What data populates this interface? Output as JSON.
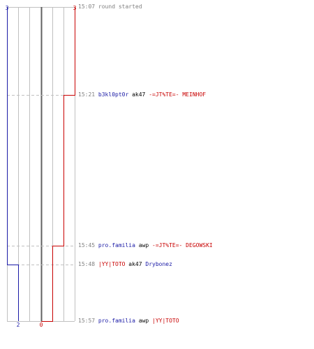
{
  "colors": {
    "blue_team": "#1a1aa6",
    "red_team": "#c80000",
    "neutral_text": "#000000",
    "time_text": "#808080",
    "grid": "#c0c0c0",
    "center_line": "#606060",
    "guide": "#c0c0c0"
  },
  "scores": {
    "blue_final": "2",
    "red_final": "0",
    "blue_max": "3",
    "red_max": "3"
  },
  "events": [
    {
      "time": "15:07",
      "type": "info",
      "text": "round started",
      "blue": 3,
      "red": 3
    },
    {
      "time": "15:21",
      "type": "kill",
      "killer": "b3kl0pt0r",
      "killer_team": "blue",
      "weapon": "ak47",
      "victim": "-=JT%TE=- MEINHOF",
      "victim_team": "red",
      "blue": 3,
      "red": 2
    },
    {
      "time": "15:45",
      "type": "kill",
      "killer": "pro.familia",
      "killer_team": "blue",
      "weapon": "awp",
      "victim": "-=JT%TE=- DEGOWSKI",
      "victim_team": "red",
      "blue": 3,
      "red": 1
    },
    {
      "time": "15:48",
      "type": "kill",
      "killer": "|YY|TOTO",
      "killer_team": "red",
      "weapon": "ak47",
      "victim": "Drybonez",
      "victim_team": "blue",
      "blue": 2,
      "red": 1
    },
    {
      "time": "15:57",
      "type": "kill",
      "killer": "pro.familia",
      "killer_team": "blue",
      "weapon": "awp",
      "victim": "|YY|TOTO",
      "victim_team": "red",
      "blue": 2,
      "red": 0
    }
  ]
}
